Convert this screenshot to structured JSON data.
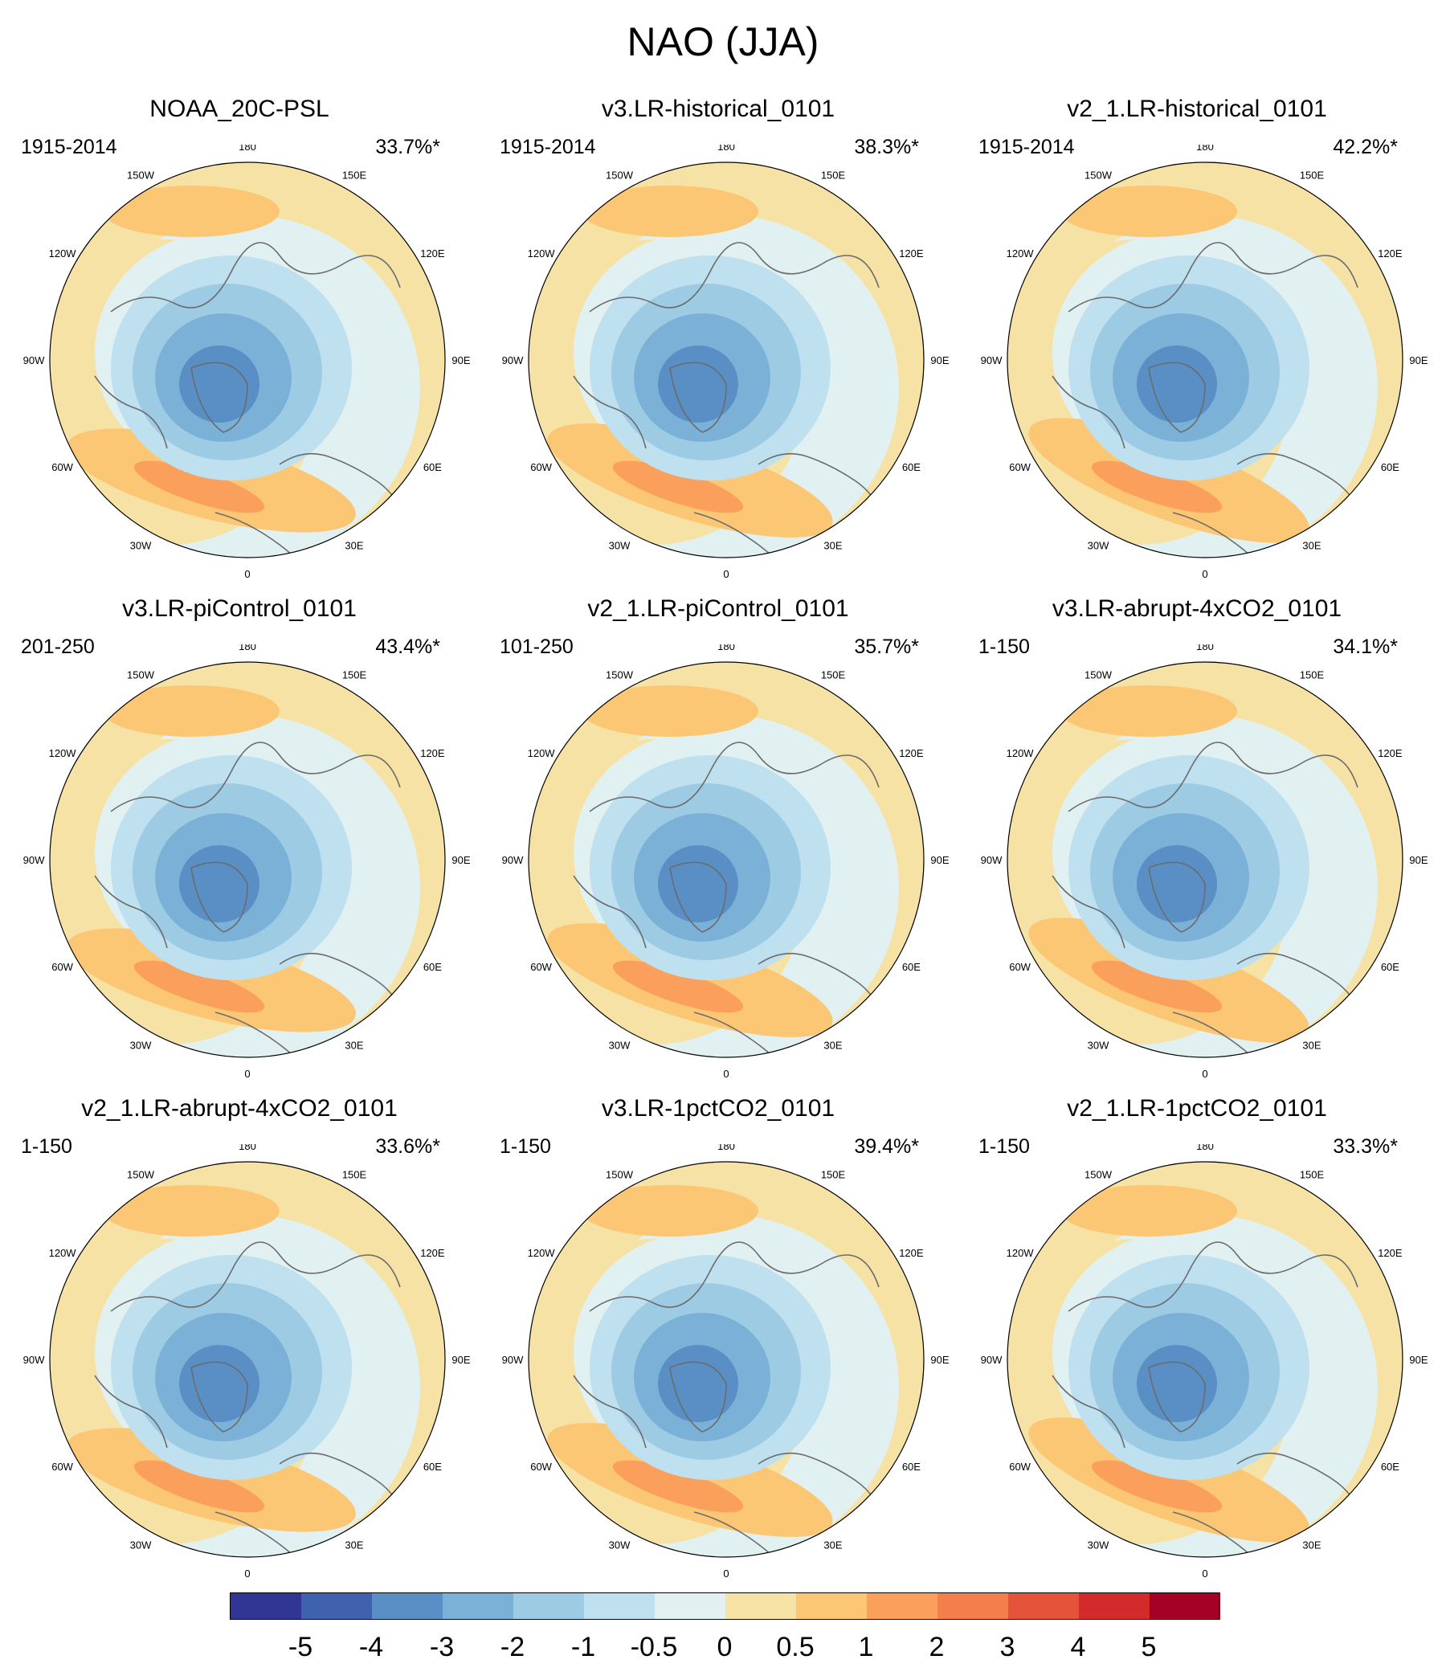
{
  "title": "NAO (JJA)",
  "chart_data": {
    "type": "heatmap",
    "title": "NAO (JJA)",
    "projection": "north-polar-stereographic",
    "longitude_labels": [
      "180",
      "150E",
      "120E",
      "90E",
      "60E",
      "30E",
      "0",
      "30W",
      "60W",
      "90W",
      "120W",
      "150W"
    ],
    "panels": [
      {
        "name": "NOAA_20C-PSL",
        "period": "1915-2014",
        "variance": "33.7%*"
      },
      {
        "name": "v3.LR-historical_0101",
        "period": "1915-2014",
        "variance": "38.3%*"
      },
      {
        "name": "v2_1.LR-historical_0101",
        "period": "1915-2014",
        "variance": "42.2%*"
      },
      {
        "name": "v3.LR-piControl_0101",
        "period": "201-250",
        "variance": "43.4%*"
      },
      {
        "name": "v2_1.LR-piControl_0101",
        "period": "101-250",
        "variance": "35.7%*"
      },
      {
        "name": "v3.LR-abrupt-4xCO2_0101",
        "period": "1-150",
        "variance": "34.1%*"
      },
      {
        "name": "v2_1.LR-abrupt-4xCO2_0101",
        "period": "1-150",
        "variance": "33.6%*"
      },
      {
        "name": "v3.LR-1pctCO2_0101",
        "period": "1-150",
        "variance": "39.4%*"
      },
      {
        "name": "v2_1.LR-1pctCO2_0101",
        "period": "1-150",
        "variance": "33.3%*"
      }
    ],
    "colorbar": {
      "labels": [
        "-5",
        "-4",
        "-3",
        "-2",
        "-1",
        "-0.5",
        "0",
        "0.5",
        "1",
        "2",
        "3",
        "4",
        "5"
      ],
      "colors": [
        "#313695",
        "#4062ae",
        "#5a8fc6",
        "#7bb1d6",
        "#9dcbe4",
        "#bfe0ee",
        "#e1f1f1",
        "#f7e2a6",
        "#fcc775",
        "#fba05c",
        "#f47f4d",
        "#e6533b",
        "#d32b2b",
        "#a50026"
      ]
    }
  }
}
